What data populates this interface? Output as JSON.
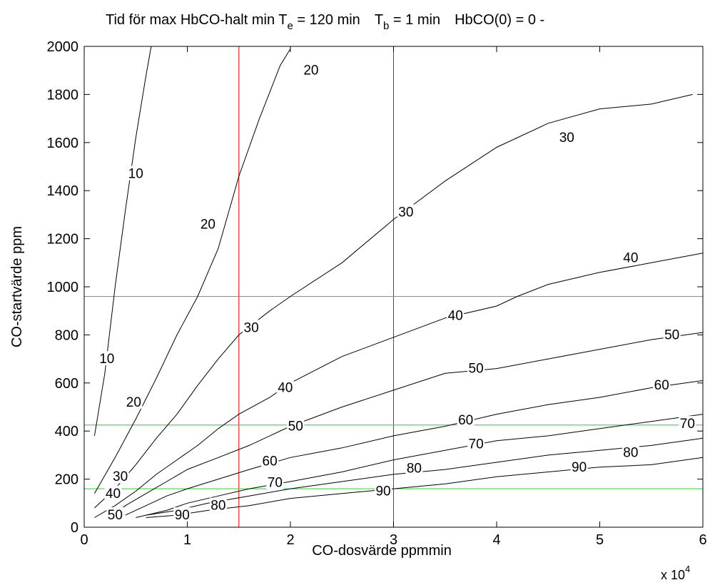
{
  "chart_data": {
    "type": "line",
    "title": {
      "prefix": "Tid för max HbCO-halt  min  T",
      "te_sub": "e",
      "te_value": " = 120 min",
      "tb_sym": "T",
      "tb_sub": "b",
      "tb_value": " = 1 min",
      "hb_value": "HbCO(0) = 0 -"
    },
    "xlabel": "CO-dosvärde  ppmmin",
    "ylabel": "CO-startvärde  ppm",
    "x_multiplier": {
      "base": "x 10",
      "exp": "4"
    },
    "xlim": [
      0,
      6
    ],
    "ylim": [
      0,
      2000
    ],
    "xticks": [
      0,
      1,
      2,
      3,
      4,
      5,
      6
    ],
    "yticks": [
      0,
      200,
      400,
      600,
      800,
      1000,
      1200,
      1400,
      1600,
      1800,
      2000
    ],
    "grid": false,
    "contours": [
      {
        "level": "10",
        "points": [
          [
            0.1,
            380
          ],
          [
            0.2,
            640
          ],
          [
            0.3,
            1000
          ],
          [
            0.4,
            1320
          ],
          [
            0.5,
            1620
          ],
          [
            0.6,
            1880
          ],
          [
            0.65,
            2000
          ]
        ],
        "labels": [
          [
            0.22,
            700
          ],
          [
            0.5,
            1470
          ]
        ]
      },
      {
        "level": "20",
        "points": [
          [
            0.1,
            140
          ],
          [
            0.3,
            290
          ],
          [
            0.5,
            450
          ],
          [
            0.7,
            620
          ],
          [
            0.9,
            800
          ],
          [
            1.1,
            960
          ],
          [
            1.3,
            1160
          ],
          [
            1.5,
            1460
          ],
          [
            1.7,
            1700
          ],
          [
            1.9,
            1920
          ],
          [
            2.0,
            1990
          ]
        ],
        "labels": [
          [
            0.48,
            520
          ],
          [
            1.2,
            1260
          ],
          [
            2.2,
            1900
          ]
        ]
      },
      {
        "level": "30",
        "points": [
          [
            0.1,
            80
          ],
          [
            0.3,
            160
          ],
          [
            0.5,
            260
          ],
          [
            0.7,
            370
          ],
          [
            0.9,
            470
          ],
          [
            1.1,
            590
          ],
          [
            1.3,
            700
          ],
          [
            1.5,
            800
          ],
          [
            1.8,
            900
          ],
          [
            2.0,
            960
          ],
          [
            2.5,
            1100
          ],
          [
            3.0,
            1280
          ],
          [
            3.5,
            1440
          ],
          [
            4.0,
            1580
          ],
          [
            4.5,
            1680
          ],
          [
            5.0,
            1740
          ],
          [
            5.5,
            1760
          ],
          [
            5.9,
            1800
          ]
        ],
        "labels": [
          [
            0.35,
            210
          ],
          [
            1.62,
            830
          ],
          [
            3.12,
            1310
          ],
          [
            4.68,
            1620
          ]
        ]
      },
      {
        "level": "40",
        "points": [
          [
            0.1,
            40
          ],
          [
            0.3,
            90
          ],
          [
            0.5,
            150
          ],
          [
            0.7,
            220
          ],
          [
            0.9,
            280
          ],
          [
            1.1,
            340
          ],
          [
            1.3,
            410
          ],
          [
            1.5,
            470
          ],
          [
            1.8,
            540
          ],
          [
            2.0,
            600
          ],
          [
            2.5,
            710
          ],
          [
            3.0,
            790
          ],
          [
            3.5,
            870
          ],
          [
            4.0,
            920
          ],
          [
            4.2,
            960
          ],
          [
            4.5,
            1010
          ],
          [
            5.0,
            1060
          ],
          [
            5.5,
            1100
          ],
          [
            6.0,
            1140
          ]
        ],
        "labels": [
          [
            0.28,
            140
          ],
          [
            1.95,
            580
          ],
          [
            3.6,
            880
          ],
          [
            5.3,
            1120
          ]
        ]
      },
      {
        "level": "50",
        "points": [
          [
            0.25,
            40
          ],
          [
            0.4,
            90
          ],
          [
            0.6,
            140
          ],
          [
            0.8,
            190
          ],
          [
            1.0,
            240
          ],
          [
            1.3,
            290
          ],
          [
            1.6,
            340
          ],
          [
            2.0,
            420
          ],
          [
            2.5,
            500
          ],
          [
            3.0,
            570
          ],
          [
            3.5,
            640
          ],
          [
            4.0,
            660
          ],
          [
            4.5,
            700
          ],
          [
            5.0,
            740
          ],
          [
            5.5,
            780
          ],
          [
            6.0,
            810
          ]
        ],
        "labels": [
          [
            0.3,
            50
          ],
          [
            2.05,
            420
          ],
          [
            3.8,
            660
          ],
          [
            5.7,
            800
          ]
        ]
      },
      {
        "level": "60",
        "points": [
          [
            0.4,
            50
          ],
          [
            0.6,
            90
          ],
          [
            0.8,
            130
          ],
          [
            1.0,
            160
          ],
          [
            1.3,
            200
          ],
          [
            1.6,
            240
          ],
          [
            2.0,
            290
          ],
          [
            2.5,
            330
          ],
          [
            3.0,
            380
          ],
          [
            3.5,
            420
          ],
          [
            4.0,
            470
          ],
          [
            4.5,
            510
          ],
          [
            5.0,
            540
          ],
          [
            5.5,
            580
          ],
          [
            6.0,
            610
          ]
        ],
        "labels": [
          [
            1.8,
            275
          ],
          [
            3.7,
            445
          ],
          [
            5.6,
            590
          ]
        ]
      },
      {
        "level": "70",
        "points": [
          [
            0.5,
            40
          ],
          [
            0.8,
            70
          ],
          [
            1.0,
            100
          ],
          [
            1.3,
            130
          ],
          [
            1.6,
            160
          ],
          [
            2.0,
            190
          ],
          [
            2.5,
            230
          ],
          [
            3.0,
            280
          ],
          [
            3.5,
            320
          ],
          [
            4.0,
            360
          ],
          [
            4.5,
            380
          ],
          [
            5.0,
            410
          ],
          [
            5.5,
            440
          ],
          [
            6.0,
            470
          ]
        ],
        "labels": [
          [
            1.85,
            185
          ],
          [
            3.8,
            345
          ],
          [
            5.85,
            430
          ]
        ]
      },
      {
        "level": "80",
        "points": [
          [
            0.6,
            50
          ],
          [
            0.9,
            70
          ],
          [
            1.2,
            100
          ],
          [
            1.6,
            130
          ],
          [
            2.0,
            160
          ],
          [
            2.5,
            190
          ],
          [
            3.0,
            220
          ],
          [
            3.5,
            240
          ],
          [
            4.0,
            270
          ],
          [
            4.5,
            300
          ],
          [
            5.0,
            320
          ],
          [
            5.5,
            340
          ],
          [
            6.0,
            370
          ]
        ],
        "labels": [
          [
            1.3,
            90
          ],
          [
            3.2,
            245
          ],
          [
            5.3,
            310
          ]
        ]
      },
      {
        "level": "90",
        "points": [
          [
            0.6,
            40
          ],
          [
            0.9,
            50
          ],
          [
            1.2,
            70
          ],
          [
            1.6,
            90
          ],
          [
            2.0,
            120
          ],
          [
            2.5,
            140
          ],
          [
            3.0,
            160
          ],
          [
            3.5,
            180
          ],
          [
            4.0,
            210
          ],
          [
            4.5,
            230
          ],
          [
            5.0,
            250
          ],
          [
            5.5,
            260
          ],
          [
            6.0,
            290
          ]
        ],
        "labels": [
          [
            0.95,
            50
          ],
          [
            2.9,
            150
          ],
          [
            4.8,
            250
          ]
        ]
      }
    ],
    "vertical_lines": [
      {
        "x": 1.5,
        "color": "#ff0000"
      },
      {
        "x": 3.0,
        "color": "#ff0000"
      }
    ],
    "horizontal_lines": [
      {
        "y": 960,
        "color": "#00ee00"
      },
      {
        "y": 425,
        "color": "#00ee00"
      },
      {
        "y": 160,
        "color": "#00ee00"
      }
    ],
    "contour_color": "#000000"
  }
}
